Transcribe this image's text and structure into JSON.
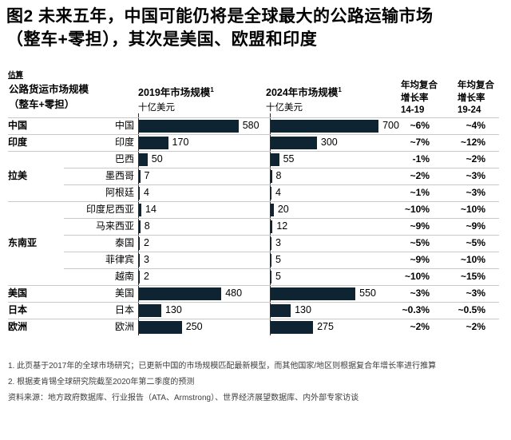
{
  "title": {
    "line1": "图2 未来五年，中国可能仍将是全球最大的公路运输市场",
    "line2": "（整车+零担），其次是美国、欧盟和印度"
  },
  "estimate_note": "估算",
  "header": {
    "metric_line1": "公路货运市场规模",
    "metric_line2": "（整车+零担）",
    "col_2019": {
      "title": "2019年市场规模",
      "sup": "1",
      "unit": "十亿美元"
    },
    "col_2024": {
      "title": "2024年市场规模",
      "sup": "1",
      "unit": "十亿美元"
    },
    "cagr_14_19": {
      "line1": "年均复合",
      "line2": "增长率",
      "line3": "14-19"
    },
    "cagr_19_24": {
      "line1": "年均复合",
      "line2": "增长率",
      "line3": "19-24"
    }
  },
  "rows": [
    {
      "group": "中国",
      "country": "中国",
      "v2019": 580,
      "v2024": 700,
      "cagr_14_19": "~6%",
      "cagr_19_24": "~4%",
      "divider": "full"
    },
    {
      "group": "印度",
      "country": "印度",
      "v2019": 170,
      "v2024": 300,
      "cagr_14_19": "~7%",
      "cagr_19_24": "~12%",
      "divider": "full"
    },
    {
      "group": "",
      "country": "巴西",
      "v2019": 50,
      "v2024": 55,
      "cagr_14_19": "-1%",
      "cagr_19_24": "~2%",
      "divider": "full"
    },
    {
      "group": "拉美",
      "country": "墨西哥",
      "v2019": 7,
      "v2024": 8,
      "cagr_14_19": "~2%",
      "cagr_19_24": "~3%",
      "divider": "indent"
    },
    {
      "group": "",
      "country": "阿根廷",
      "v2019": 4,
      "v2024": 4,
      "cagr_14_19": "~1%",
      "cagr_19_24": "~3%",
      "divider": "indent"
    },
    {
      "group": "",
      "country": "印度尼西亚",
      "v2019": 14,
      "v2024": 20,
      "cagr_14_19": "~10%",
      "cagr_19_24": "~10%",
      "divider": "full"
    },
    {
      "group": "",
      "country": "马来西亚",
      "v2019": 8,
      "v2024": 12,
      "cagr_14_19": "~9%",
      "cagr_19_24": "~9%",
      "divider": "indent"
    },
    {
      "group": "东南亚",
      "country": "泰国",
      "v2019": 2,
      "v2024": 3,
      "cagr_14_19": "~5%",
      "cagr_19_24": "~5%",
      "divider": "indent"
    },
    {
      "group": "",
      "country": "菲律宾",
      "v2019": 3,
      "v2024": 5,
      "cagr_14_19": "~9%",
      "cagr_19_24": "~10%",
      "divider": "indent"
    },
    {
      "group": "",
      "country": "越南",
      "v2019": 2,
      "v2024": 5,
      "cagr_14_19": "~10%",
      "cagr_19_24": "~15%",
      "divider": "indent"
    },
    {
      "group": "美国",
      "country": "美国",
      "v2019": 480,
      "v2024": 550,
      "cagr_14_19": "~3%",
      "cagr_19_24": "~3%",
      "divider": "full"
    },
    {
      "group": "日本",
      "country": "日本",
      "v2019": 130,
      "v2024": 130,
      "cagr_14_19": "~0.3%",
      "cagr_19_24": "~0.5%",
      "divider": "full"
    },
    {
      "group": "欧洲",
      "country": "欧洲",
      "v2019": 250,
      "v2024": 275,
      "cagr_14_19": "~2%",
      "cagr_19_24": "~2%",
      "divider": "full"
    }
  ],
  "footnotes": [
    "1. 此页基于2017年的全球市场研究；已更新中国的市场规模匹配最新模型，而其他国家/地区则根据复合年增长率进行推算",
    "2. 根据麦肯锡全球研究院截至2020年第二季度的预测"
  ],
  "source": "资料来源：地方政府数据库、行业报告（ATA、Armstrong）、世界经济展望数据库、内外部专家访谈",
  "colors": {
    "bar": "#0f2433",
    "axis": "#2b2b2b",
    "divider": "#c9c9c9"
  },
  "chart_data": {
    "type": "bar",
    "title": "图2 未来五年，中国可能仍将是全球最大的公路运输市场（整车+零担），其次是美国、欧盟和印度",
    "subtitle": "估算",
    "row_header": "公路货运市场规模（整车+零担）",
    "unit": "十亿美元",
    "categories": [
      "中国",
      "印度",
      "巴西",
      "墨西哥",
      "阿根廷",
      "印度尼西亚",
      "马来西亚",
      "泰国",
      "菲律宾",
      "越南",
      "美国",
      "日本",
      "欧洲"
    ],
    "groups": [
      "中国",
      "印度",
      "拉美",
      "拉美",
      "拉美",
      "东南亚",
      "东南亚",
      "东南亚",
      "东南亚",
      "东南亚",
      "美国",
      "日本",
      "欧洲"
    ],
    "series": [
      {
        "name": "2019年市场规模（十亿美元）",
        "values": [
          580,
          170,
          50,
          7,
          4,
          14,
          8,
          2,
          3,
          2,
          480,
          130,
          250
        ]
      },
      {
        "name": "2024年市场规模（十亿美元）",
        "values": [
          700,
          300,
          55,
          8,
          4,
          20,
          12,
          3,
          5,
          5,
          550,
          130,
          275
        ]
      }
    ],
    "cagr_14_19": [
      "~6%",
      "~7%",
      "-1%",
      "~2%",
      "~1%",
      "~10%",
      "~9%",
      "~5%",
      "~9%",
      "~10%",
      "~3%",
      "~0.3%",
      "~2%"
    ],
    "cagr_19_24": [
      "~4%",
      "~12%",
      "~2%",
      "~3%",
      "~3%",
      "~10%",
      "~9%",
      "~5%",
      "~10%",
      "~15%",
      "~3%",
      "~0.5%",
      "~2%"
    ],
    "orientation": "horizontal",
    "legend_position": "none",
    "grid": false
  }
}
